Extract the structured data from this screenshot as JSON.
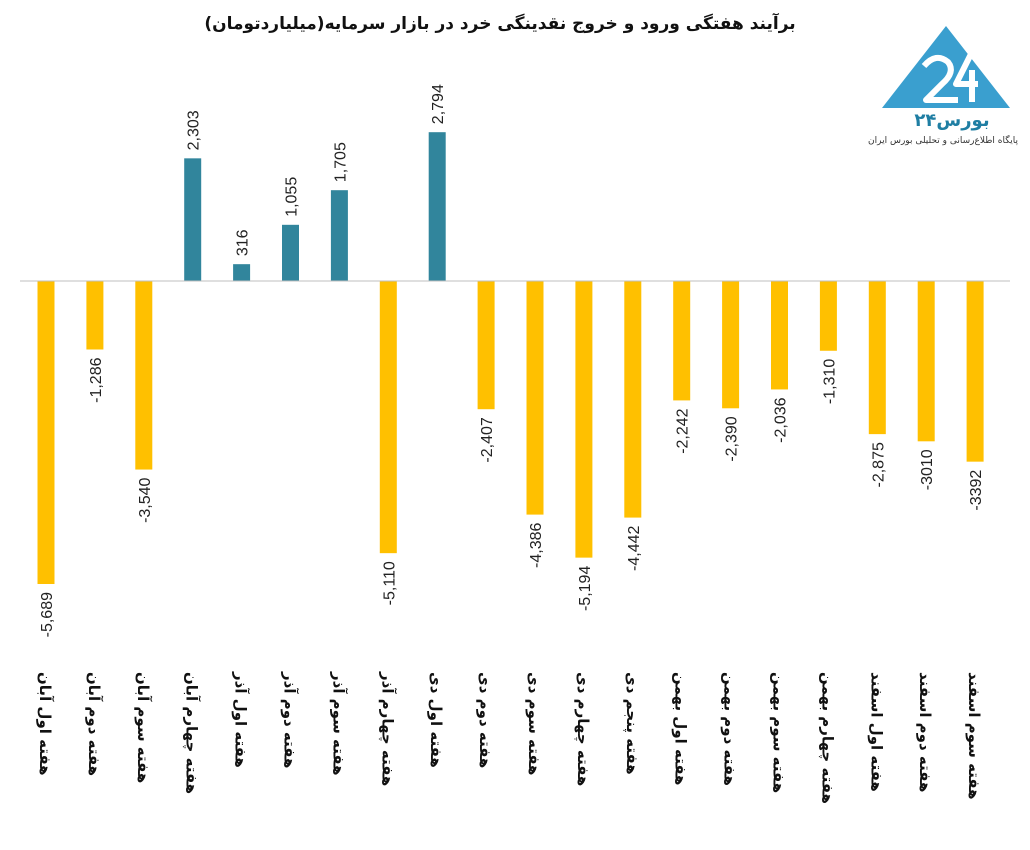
{
  "title": "برآیند هفتگی ورود و خروج نقدینگی خرد در بازار سرمایه(میلیاردتومان)",
  "logo": {
    "name": "بورس۲۴",
    "tagline": "پایگاه اطلاع‌رسانی و تحلیلی بورس ایران",
    "brand_color": "#3a9fcf"
  },
  "chart_data": {
    "type": "bar",
    "title": "برآیند هفتگی ورود و خروج نقدینگی خرد در بازار سرمایه(میلیاردتومان)",
    "xlabel": "",
    "ylabel": "",
    "grid": false,
    "legend": "none",
    "ylim": [
      -6000,
      3000
    ],
    "positive_color": "#31859c",
    "negative_color": "#ffc000",
    "categories": [
      "هفته اول آبان",
      "هفته دوم آبان",
      "هفته سوم آبان",
      "هفته چهارم آبان",
      "هفته اول آذر",
      "هفته دوم آذر",
      "هفته سوم آذر",
      "هفته چهارم آذر",
      "هفته اول دی",
      "هفته دوم دی",
      "هفته سوم دی",
      "هفته چهارم دی",
      "هفته پنجم دی",
      "هفته اول بهمن",
      "هفته دوم بهمن",
      "هفته سوم بهمن",
      "هفته چهارم بهمن",
      "هفته اول اسفند",
      "هفته دوم اسفند",
      "هفته سوم اسفند"
    ],
    "values": [
      -5689,
      -1286,
      -3540,
      2303,
      316,
      1055,
      1705,
      -5110,
      2794,
      -2407,
      -4386,
      -5194,
      -4442,
      -2242,
      -2390,
      -2036,
      -1310,
      -2875,
      -3010,
      -3392
    ],
    "data_labels": [
      "-5,689",
      "-1,286",
      "-3,540",
      "2,303",
      "316",
      "1,055",
      "1,705",
      "-5,110",
      "2,794",
      "-2,407",
      "-4,386",
      "-5,194",
      "-4,442",
      "-2,242",
      "-2,390",
      "-2,036",
      "-1,310",
      "-2,875",
      "-3010",
      "-3392"
    ]
  }
}
